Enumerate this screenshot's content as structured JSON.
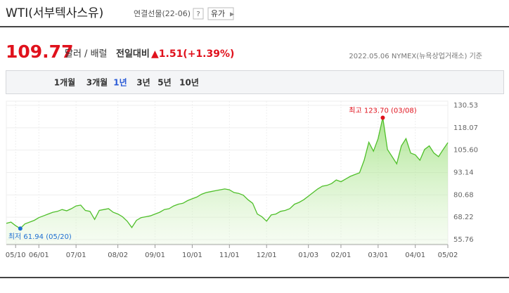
{
  "header": {
    "title": "WTI(서부텍사스유)",
    "subtitle": "연결선물(22-06)",
    "help": "?",
    "category_button": "유가"
  },
  "quote": {
    "price": "109.77",
    "unit": "달러 / 배럴",
    "change_label": "전일대비",
    "change": "▲1.51(+1.39%)",
    "note": "2022.05.06 NYMEX(뉴욕상업거래소) 기준"
  },
  "tabs": {
    "items": [
      "1개월",
      "3개월",
      "1년",
      "3년",
      "5년",
      "10년"
    ],
    "selected": 2
  },
  "chart_data": {
    "type": "line",
    "categories": [
      null,
      null,
      "05/10",
      null,
      null,
      null,
      null,
      "06/01",
      null,
      null,
      null,
      null,
      null,
      null,
      null,
      "07/01",
      null,
      null,
      null,
      null,
      null,
      null,
      null,
      null,
      "08/02",
      null,
      null,
      null,
      null,
      null,
      null,
      null,
      "09/01",
      null,
      null,
      null,
      null,
      null,
      null,
      null,
      "10/01",
      null,
      null,
      null,
      null,
      null,
      null,
      null,
      "11/01",
      null,
      null,
      null,
      null,
      null,
      null,
      null,
      "12/01",
      null,
      null,
      null,
      null,
      null,
      null,
      null,
      null,
      "01/03",
      null,
      null,
      null,
      null,
      null,
      null,
      "02/01",
      null,
      null,
      null,
      null,
      null,
      null,
      null,
      "03/01",
      null,
      null,
      null,
      null,
      null,
      null,
      null,
      "04/01",
      null,
      null,
      null,
      null,
      null,
      null,
      "05/02"
    ],
    "series": [
      {
        "name": "WTI",
        "color": "#4fbf2a",
        "values": [
          64.8,
          65.5,
          63.5,
          61.94,
          64.5,
          65.5,
          66.5,
          68.0,
          69.0,
          70.0,
          71.0,
          71.5,
          72.5,
          71.8,
          73.0,
          74.5,
          75.0,
          72.0,
          71.5,
          67.0,
          72.0,
          72.5,
          73.0,
          71.0,
          70.0,
          68.5,
          66.0,
          62.5,
          66.5,
          68.0,
          68.5,
          69.0,
          70.0,
          71.0,
          72.5,
          73.0,
          74.5,
          75.5,
          76.0,
          77.5,
          78.5,
          79.5,
          81.0,
          82.0,
          82.5,
          83.0,
          83.5,
          84.0,
          83.5,
          82.0,
          81.5,
          80.5,
          78.0,
          76.0,
          70.0,
          68.5,
          66.0,
          69.5,
          70.0,
          71.5,
          72.0,
          73.0,
          75.5,
          76.5,
          78.0,
          80.0,
          82.0,
          84.0,
          85.5,
          86.0,
          87.0,
          89.0,
          88.0,
          89.5,
          91.0,
          92.0,
          93.0,
          100.0,
          110.0,
          105.0,
          112.0,
          123.7,
          106.0,
          102.0,
          98.0,
          108.0,
          112.0,
          104.0,
          103.0,
          100.0,
          106.0,
          108.0,
          104.0,
          102.0,
          106.0,
          109.77
        ]
      }
    ],
    "ylim": [
      55.76,
      130.53
    ],
    "yticks": [
      55.76,
      68.22,
      80.68,
      93.14,
      {
        "value": 105.6,
        "label": "105.60"
      },
      118.07,
      130.53
    ],
    "annotations": {
      "high": "최고 123.70 (03/08)",
      "low": "최저 61.94 (05/20)"
    },
    "grid": true
  }
}
